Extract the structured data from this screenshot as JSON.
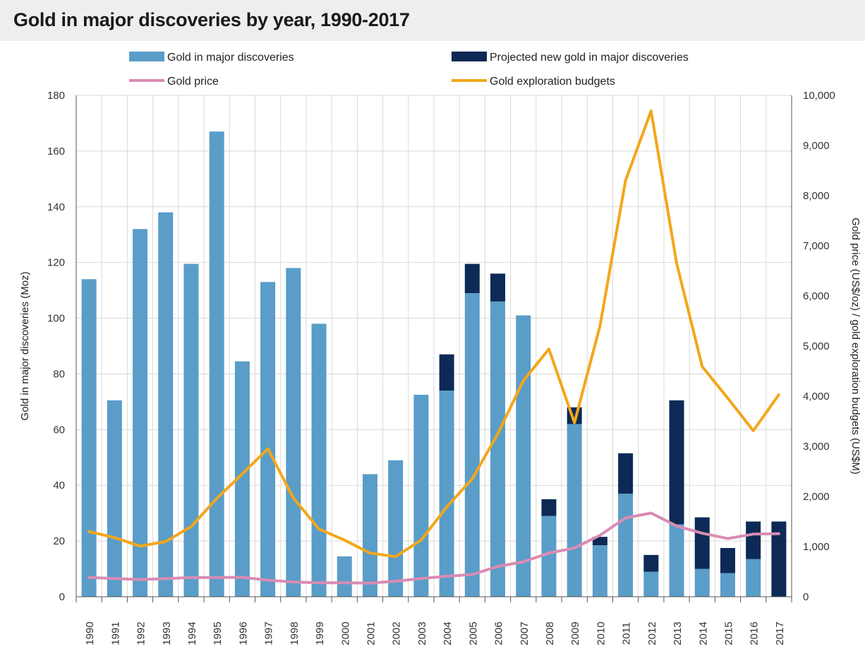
{
  "chart_data": {
    "type": "bar",
    "title": "Gold in major discoveries by year, 1990-2017",
    "ylabel": "Gold in major discoveries (Moz)",
    "y2label": "Gold price (US$/oz) / gold exploration budgets (US$M)",
    "ylim": [
      0,
      180
    ],
    "y2lim": [
      0,
      10000
    ],
    "yticks": [
      0,
      20,
      40,
      60,
      80,
      100,
      120,
      140,
      160,
      180
    ],
    "y2ticks": [
      "0",
      "1,000",
      "2,000",
      "3,000",
      "4,000",
      "5,000",
      "6,000",
      "7,000",
      "8,000",
      "9,000",
      "10,000"
    ],
    "categories": [
      "1990",
      "1991",
      "1992",
      "1993",
      "1994",
      "1995",
      "1996",
      "1997",
      "1998",
      "1999",
      "2000",
      "2001",
      "2002",
      "2003",
      "2004",
      "2005",
      "2006",
      "2007",
      "2008",
      "2009",
      "2010",
      "2011",
      "2012",
      "2013",
      "2014",
      "2015",
      "2016",
      "2017"
    ],
    "series": [
      {
        "name": "Gold in major discoveries",
        "type": "bar",
        "axis": "left",
        "color": "#5a9dc8",
        "values": [
          114,
          70.5,
          132,
          138,
          119.5,
          167,
          84.5,
          113,
          118,
          98,
          14.5,
          44,
          49,
          72.5,
          74,
          109,
          106,
          101,
          29,
          62,
          18.5,
          37,
          9,
          26,
          10,
          8.5,
          13.5,
          0
        ]
      },
      {
        "name": "Projected new gold in major discoveries",
        "type": "bar-stacked",
        "axis": "left",
        "color": "#0c2a55",
        "values": [
          0,
          0,
          0,
          0,
          0,
          0,
          0,
          0,
          0,
          0,
          0,
          0,
          0,
          0,
          13,
          10.5,
          10,
          0,
          6,
          6,
          3,
          14.5,
          6,
          44.5,
          18.5,
          9,
          13.5,
          27
        ]
      },
      {
        "name": "Gold price",
        "type": "line",
        "axis": "right",
        "color": "#d98cb3",
        "values": [
          384,
          362,
          344,
          360,
          384,
          384,
          388,
          331,
          294,
          279,
          279,
          271,
          310,
          363,
          409,
          444,
          604,
          697,
          872,
          972,
          1225,
          1572,
          1669,
          1411,
          1266,
          1160,
          1250,
          1257
        ]
      },
      {
        "name": "Gold exploration budgets",
        "type": "line",
        "axis": "right",
        "color": "#f2a71b",
        "values": [
          1300,
          1180,
          1010,
          1100,
          1400,
          1960,
          2450,
          2950,
          1970,
          1350,
          1130,
          870,
          800,
          1130,
          1790,
          2350,
          3250,
          4310,
          4940,
          3470,
          5400,
          8300,
          9690,
          6650,
          4590,
          3960,
          3310,
          4030
        ]
      }
    ],
    "legend_position": "top",
    "grid": true
  }
}
